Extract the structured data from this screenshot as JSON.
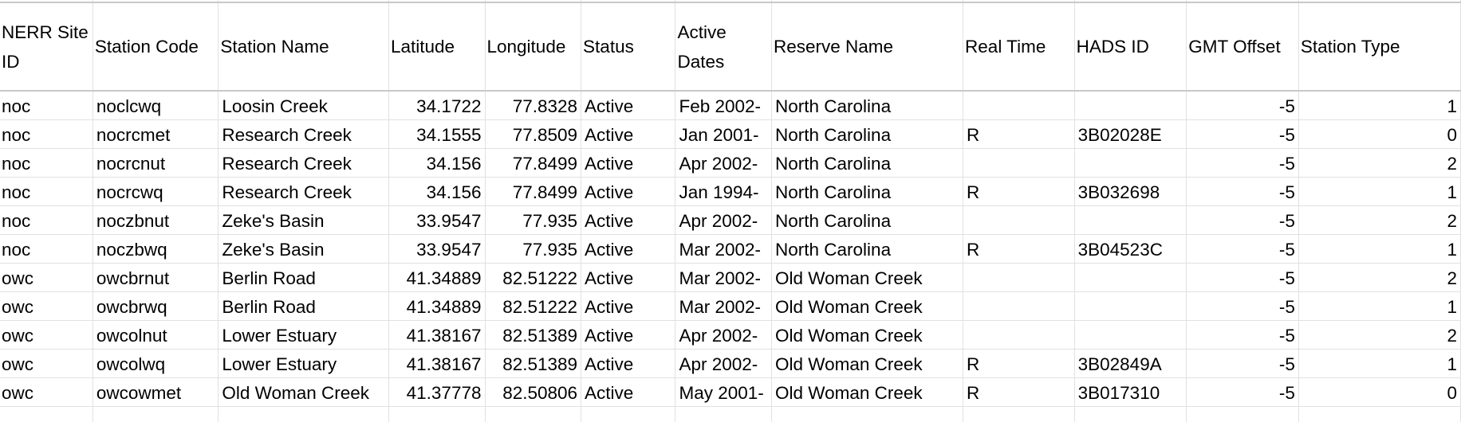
{
  "table": {
    "columns": [
      "NERR Site ID",
      "Station Code",
      "Station Name",
      "Latitude",
      "Longitude",
      "Status",
      "Active Dates",
      "Reserve Name",
      "Real Time",
      "HADS ID",
      "GMT Offset",
      "Station Type"
    ],
    "rows": [
      [
        "noc",
        "noclcwq",
        "Loosin Creek",
        "34.1722",
        "77.8328",
        "Active",
        "Feb 2002-",
        "North Carolina",
        "",
        "",
        "-5",
        "1"
      ],
      [
        "noc",
        "nocrcmet",
        "Research Creek",
        "34.1555",
        "77.8509",
        "Active",
        "Jan 2001-",
        "North Carolina",
        "R",
        "3B02028E",
        "-5",
        "0"
      ],
      [
        "noc",
        "nocrcnut",
        "Research Creek",
        "34.156",
        "77.8499",
        "Active",
        "Apr 2002-",
        "North Carolina",
        "",
        "",
        "-5",
        "2"
      ],
      [
        "noc",
        "nocrcwq",
        "Research Creek",
        "34.156",
        "77.8499",
        "Active",
        "Jan 1994-",
        "North Carolina",
        "R",
        "3B032698",
        "-5",
        "1"
      ],
      [
        "noc",
        "noczbnut",
        "Zeke's Basin",
        "33.9547",
        "77.935",
        "Active",
        "Apr 2002-",
        "North Carolina",
        "",
        "",
        "-5",
        "2"
      ],
      [
        "noc",
        "noczbwq",
        "Zeke's Basin",
        "33.9547",
        "77.935",
        "Active",
        "Mar 2002-",
        "North Carolina",
        "R",
        "3B04523C",
        "-5",
        "1"
      ],
      [
        "owc",
        "owcbrnut",
        "Berlin Road",
        "41.34889",
        "82.51222",
        "Active",
        "Mar 2002-",
        "Old Woman Creek",
        "",
        "",
        "-5",
        "2"
      ],
      [
        "owc",
        "owcbrwq",
        "Berlin Road",
        "41.34889",
        "82.51222",
        "Active",
        "Mar 2002-",
        "Old Woman Creek",
        "",
        "",
        "-5",
        "1"
      ],
      [
        "owc",
        "owcolnut",
        "Lower Estuary",
        "41.38167",
        "82.51389",
        "Active",
        "Apr 2002-",
        "Old Woman Creek",
        "",
        "",
        "-5",
        "2"
      ],
      [
        "owc",
        "owcolwq",
        "Lower Estuary",
        "41.38167",
        "82.51389",
        "Active",
        "Apr 2002-",
        "Old Woman Creek",
        "R",
        "3B02849A",
        "-5",
        "1"
      ],
      [
        "owc",
        "owcowmet",
        "Old Woman Creek",
        "41.37778",
        "82.50806",
        "Active",
        "May 2001-",
        "Old Woman Creek",
        "R",
        "3B017310",
        "-5",
        "0"
      ]
    ]
  }
}
